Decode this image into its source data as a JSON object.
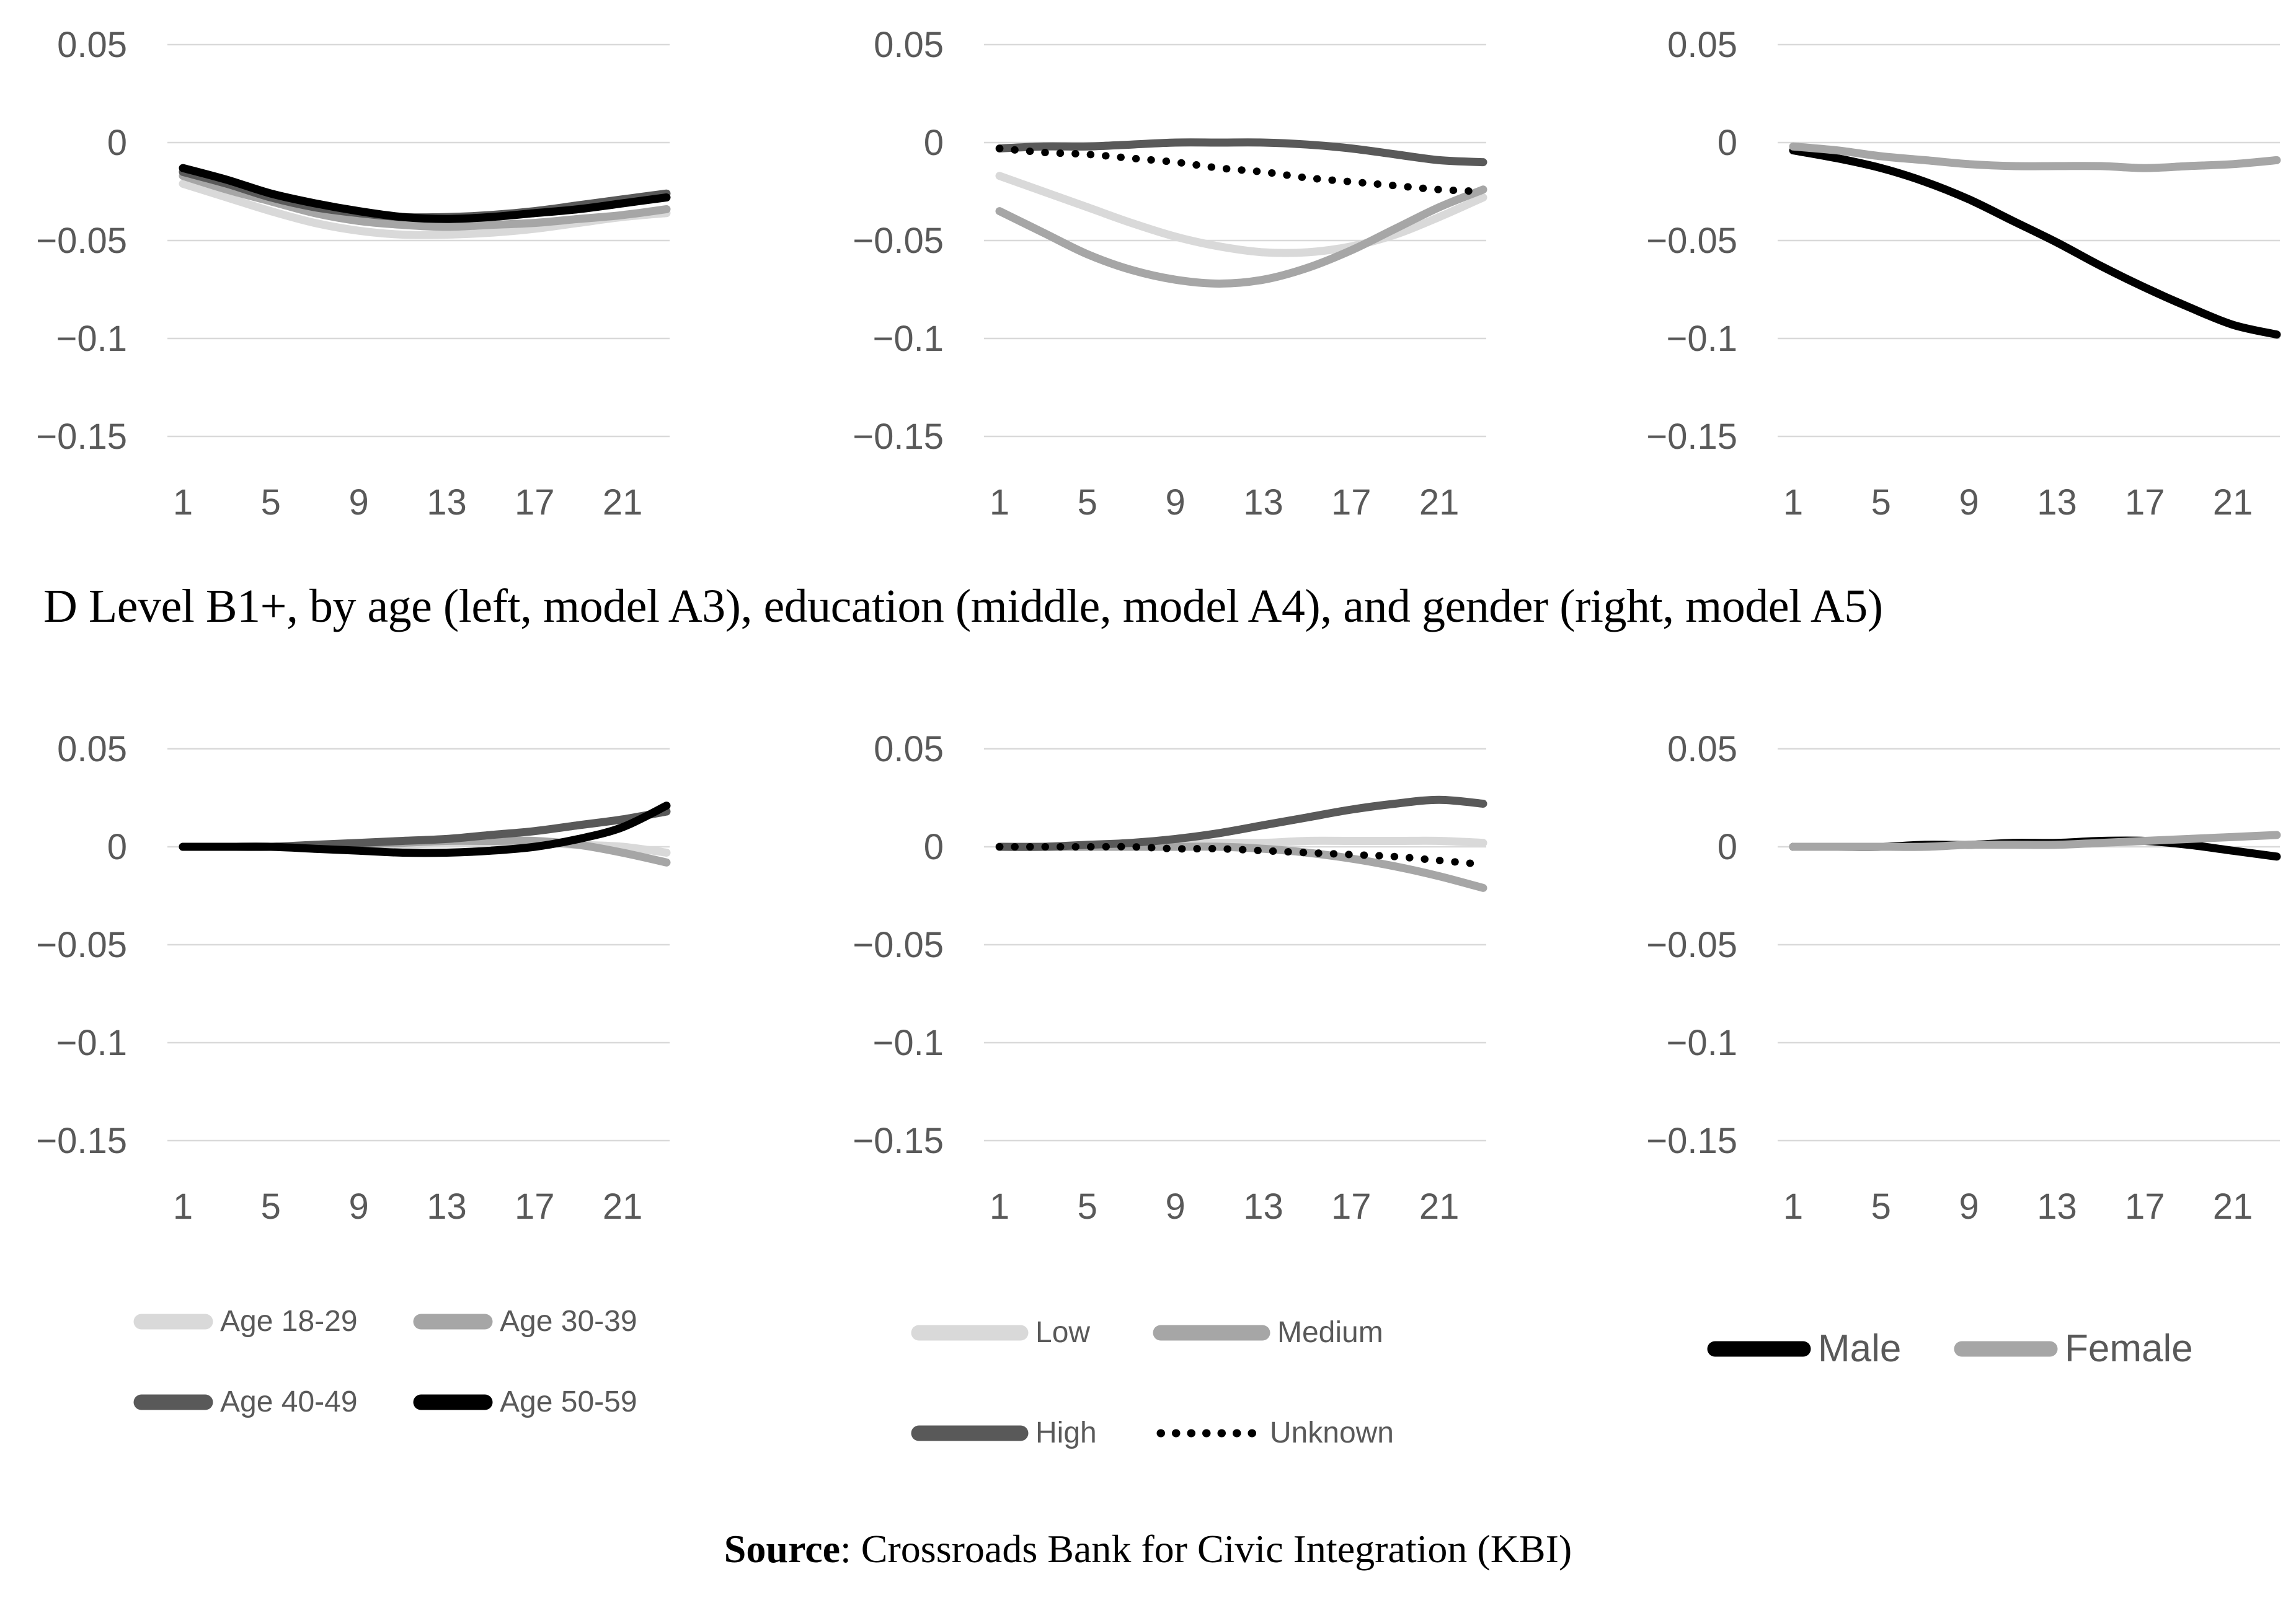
{
  "title": {
    "text": "D Level B1+, by age (left, model A3), education (middle, model A4), and gender (right, model A5)"
  },
  "source": {
    "label": "Source",
    "text": ": Crossroads Bank for Civic Integration (KBI)"
  },
  "colors": {
    "black": "#000000",
    "dark": "#595959",
    "medium": "#a6a6a6",
    "light": "#d9d9d9",
    "grid": "#d9d9d9",
    "axis_text": "#595959"
  },
  "axes": {
    "y_tick_labels": [
      "0.05",
      "0",
      "−0.05",
      "−0.1",
      "−0.15"
    ],
    "y_tick_values": [
      0.05,
      0,
      -0.05,
      -0.1,
      -0.15
    ],
    "x_tick_labels": [
      "1",
      "5",
      "9",
      "13",
      "17",
      "21"
    ],
    "x_tick_values": [
      1,
      5,
      9,
      13,
      17,
      21
    ],
    "ylim": [
      0.05,
      -0.15
    ],
    "x_domain": [
      1,
      23
    ],
    "grid": true
  },
  "chart_data": [
    {
      "id": "a2-age",
      "panel": "top-left",
      "type": "line",
      "x": [
        1,
        3,
        5,
        7,
        9,
        11,
        13,
        15,
        17,
        19,
        21,
        23
      ],
      "series": [
        {
          "name": "Age 18-29",
          "color": "light",
          "style": "solid",
          "values": [
            -0.021,
            -0.028,
            -0.035,
            -0.041,
            -0.045,
            -0.047,
            -0.047,
            -0.046,
            -0.044,
            -0.041,
            -0.038,
            -0.036
          ]
        },
        {
          "name": "Age 30-39",
          "color": "medium",
          "style": "solid",
          "values": [
            -0.017,
            -0.024,
            -0.03,
            -0.036,
            -0.04,
            -0.042,
            -0.043,
            -0.042,
            -0.041,
            -0.039,
            -0.037,
            -0.034
          ]
        },
        {
          "name": "Age 40-49",
          "color": "dark",
          "style": "solid",
          "values": [
            -0.015,
            -0.021,
            -0.028,
            -0.033,
            -0.036,
            -0.038,
            -0.038,
            -0.037,
            -0.035,
            -0.032,
            -0.029,
            -0.026
          ]
        },
        {
          "name": "Age 50-59",
          "color": "black",
          "style": "solid",
          "values": [
            -0.013,
            -0.019,
            -0.026,
            -0.031,
            -0.035,
            -0.038,
            -0.039,
            -0.038,
            -0.036,
            -0.034,
            -0.031,
            -0.028
          ]
        }
      ]
    },
    {
      "id": "a2-education",
      "panel": "top-middle",
      "type": "line",
      "x": [
        1,
        3,
        5,
        7,
        9,
        11,
        13,
        15,
        17,
        19,
        21,
        23
      ],
      "series": [
        {
          "name": "Low",
          "color": "light",
          "style": "solid",
          "values": [
            -0.017,
            -0.025,
            -0.033,
            -0.041,
            -0.048,
            -0.053,
            -0.056,
            -0.056,
            -0.053,
            -0.047,
            -0.038,
            -0.028
          ]
        },
        {
          "name": "Medium",
          "color": "medium",
          "style": "solid",
          "values": [
            -0.035,
            -0.046,
            -0.057,
            -0.065,
            -0.07,
            -0.072,
            -0.07,
            -0.064,
            -0.055,
            -0.044,
            -0.033,
            -0.024
          ]
        },
        {
          "name": "High",
          "color": "dark",
          "style": "solid",
          "values": [
            -0.003,
            -0.002,
            -0.002,
            -0.001,
            0.0,
            0.0,
            0.0,
            -0.001,
            -0.003,
            -0.006,
            -0.009,
            -0.01
          ]
        },
        {
          "name": "Unknown",
          "color": "black",
          "style": "dotted",
          "values": [
            -0.003,
            -0.005,
            -0.006,
            -0.008,
            -0.01,
            -0.013,
            -0.015,
            -0.018,
            -0.02,
            -0.022,
            -0.024,
            -0.025
          ]
        }
      ]
    },
    {
      "id": "a2-gender",
      "panel": "top-right",
      "type": "line",
      "x": [
        1,
        3,
        5,
        7,
        9,
        11,
        13,
        15,
        17,
        19,
        21,
        23
      ],
      "series": [
        {
          "name": "Male",
          "color": "black",
          "style": "solid",
          "values": [
            -0.004,
            -0.008,
            -0.013,
            -0.02,
            -0.029,
            -0.04,
            -0.051,
            -0.063,
            -0.074,
            -0.084,
            -0.093,
            -0.098
          ]
        },
        {
          "name": "Female",
          "color": "medium",
          "style": "solid",
          "values": [
            -0.002,
            -0.004,
            -0.007,
            -0.009,
            -0.011,
            -0.012,
            -0.012,
            -0.012,
            -0.013,
            -0.012,
            -0.011,
            -0.009
          ]
        }
      ]
    },
    {
      "id": "b1-age",
      "panel": "bottom-left",
      "type": "line",
      "x": [
        1,
        3,
        5,
        7,
        9,
        11,
        13,
        15,
        17,
        19,
        21,
        23
      ],
      "series": [
        {
          "name": "Age 18-29",
          "color": "light",
          "style": "solid",
          "values": [
            0.0,
            0.0,
            0.0,
            0.0,
            0.001,
            0.001,
            0.002,
            0.002,
            0.002,
            0.001,
            0.0,
            -0.003
          ]
        },
        {
          "name": "Age 30-39",
          "color": "medium",
          "style": "solid",
          "values": [
            0.0,
            0.0,
            0.0,
            0.0,
            0.001,
            0.002,
            0.003,
            0.003,
            0.003,
            0.001,
            -0.003,
            -0.008
          ]
        },
        {
          "name": "Age 40-49",
          "color": "dark",
          "style": "solid",
          "values": [
            0.0,
            0.0,
            0.0,
            0.001,
            0.002,
            0.003,
            0.004,
            0.006,
            0.008,
            0.011,
            0.014,
            0.018
          ]
        },
        {
          "name": "Age 50-59",
          "color": "black",
          "style": "solid",
          "values": [
            0.0,
            0.0,
            0.0,
            -0.001,
            -0.002,
            -0.003,
            -0.003,
            -0.002,
            0.0,
            0.004,
            0.01,
            0.021
          ]
        }
      ]
    },
    {
      "id": "b1-education",
      "panel": "bottom-middle",
      "type": "line",
      "x": [
        1,
        3,
        5,
        7,
        9,
        11,
        13,
        15,
        17,
        19,
        21,
        23
      ],
      "series": [
        {
          "name": "Low",
          "color": "light",
          "style": "solid",
          "values": [
            0.0,
            0.0,
            0.0,
            0.001,
            0.001,
            0.002,
            0.002,
            0.003,
            0.003,
            0.003,
            0.003,
            0.002
          ]
        },
        {
          "name": "Medium",
          "color": "medium",
          "style": "solid",
          "values": [
            0.0,
            0.0,
            0.0,
            0.0,
            0.0,
            0.0,
            -0.001,
            -0.003,
            -0.006,
            -0.01,
            -0.015,
            -0.021
          ]
        },
        {
          "name": "High",
          "color": "dark",
          "style": "solid",
          "values": [
            0.0,
            0.0,
            0.001,
            0.002,
            0.004,
            0.007,
            0.011,
            0.015,
            0.019,
            0.022,
            0.024,
            0.022
          ]
        },
        {
          "name": "Unknown",
          "color": "black",
          "style": "dotted",
          "values": [
            0.0,
            0.0,
            0.0,
            0.0,
            -0.001,
            -0.001,
            -0.002,
            -0.003,
            -0.004,
            -0.005,
            -0.007,
            -0.009
          ]
        }
      ]
    },
    {
      "id": "b1-gender",
      "panel": "bottom-right",
      "type": "line",
      "x": [
        1,
        3,
        5,
        7,
        9,
        11,
        13,
        15,
        17,
        19,
        21,
        23
      ],
      "series": [
        {
          "name": "Male",
          "color": "black",
          "style": "solid",
          "values": [
            0.0,
            0.0,
            0.0,
            0.001,
            0.001,
            0.002,
            0.002,
            0.003,
            0.003,
            0.001,
            -0.002,
            -0.005
          ]
        },
        {
          "name": "Female",
          "color": "medium",
          "style": "solid",
          "values": [
            0.0,
            0.0,
            0.0,
            0.0,
            0.001,
            0.001,
            0.001,
            0.002,
            0.003,
            0.004,
            0.005,
            0.006
          ]
        }
      ]
    }
  ],
  "legends": [
    {
      "id": "age",
      "rows": [
        [
          {
            "label": "Age 18-29",
            "color": "light",
            "style": "solid"
          },
          {
            "label": "Age 30-39",
            "color": "medium",
            "style": "solid"
          }
        ],
        [
          {
            "label": "Age 40-49",
            "color": "dark",
            "style": "solid"
          },
          {
            "label": "Age 50-59",
            "color": "black",
            "style": "solid"
          }
        ]
      ]
    },
    {
      "id": "education",
      "rows": [
        [
          {
            "label": "Low",
            "color": "light",
            "style": "solid"
          },
          {
            "label": "Medium",
            "color": "medium",
            "style": "solid"
          }
        ],
        [
          {
            "label": "High",
            "color": "dark",
            "style": "solid"
          },
          {
            "label": "Unknown",
            "color": "black",
            "style": "dotted"
          }
        ]
      ]
    },
    {
      "id": "gender",
      "rows": [
        [
          {
            "label": "Male",
            "color": "black",
            "style": "solid"
          },
          {
            "label": "Female",
            "color": "medium",
            "style": "solid"
          }
        ]
      ]
    }
  ]
}
